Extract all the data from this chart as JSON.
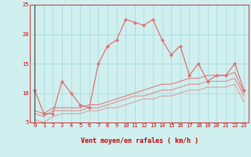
{
  "x": [
    0,
    1,
    2,
    3,
    4,
    5,
    6,
    7,
    8,
    9,
    10,
    11,
    12,
    13,
    14,
    15,
    16,
    17,
    18,
    19,
    20,
    21,
    22,
    23
  ],
  "line1": [
    10.5,
    6.5,
    6.5,
    12.0,
    10.0,
    8.0,
    7.5,
    15.0,
    18.0,
    19.0,
    22.5,
    22.0,
    21.5,
    22.5,
    19.0,
    16.5,
    18.0,
    13.0,
    15.0,
    12.0,
    13.0,
    13.0,
    15.0,
    10.5
  ],
  "line2": [
    7.0,
    6.5,
    7.5,
    7.5,
    7.5,
    7.5,
    8.0,
    8.0,
    8.5,
    9.0,
    9.5,
    10.0,
    10.5,
    11.0,
    11.5,
    11.5,
    12.0,
    12.5,
    12.5,
    13.0,
    13.0,
    13.0,
    13.5,
    10.0
  ],
  "line3": [
    6.5,
    6.0,
    7.0,
    7.0,
    7.0,
    7.0,
    7.5,
    7.5,
    8.0,
    8.5,
    9.0,
    9.5,
    9.5,
    10.0,
    10.5,
    10.5,
    11.0,
    11.5,
    11.5,
    12.0,
    12.0,
    12.0,
    12.5,
    9.5
  ],
  "line4": [
    5.5,
    5.0,
    6.0,
    6.5,
    6.5,
    6.5,
    7.0,
    7.0,
    7.5,
    7.5,
    8.0,
    8.5,
    9.0,
    9.0,
    9.5,
    9.5,
    10.0,
    10.5,
    10.5,
    11.0,
    11.0,
    11.0,
    11.5,
    8.5
  ],
  "line_color": "#e07070",
  "bg_color": "#d0efef",
  "grid_color": "#aadddd",
  "xlabel": "Vent moyen/en rafales ( km/h )",
  "ylim": [
    5,
    25
  ],
  "xlim": [
    -0.5,
    23.5
  ],
  "yticks": [
    5,
    10,
    15,
    20,
    25
  ],
  "xticks": [
    0,
    1,
    2,
    3,
    4,
    5,
    6,
    7,
    8,
    9,
    10,
    11,
    12,
    13,
    14,
    15,
    16,
    17,
    18,
    19,
    20,
    21,
    22,
    23
  ],
  "tick_color": "#cc0000",
  "spine_color": "#cc3333",
  "label_fontsize": 5.0,
  "xlabel_fontsize": 6.0
}
